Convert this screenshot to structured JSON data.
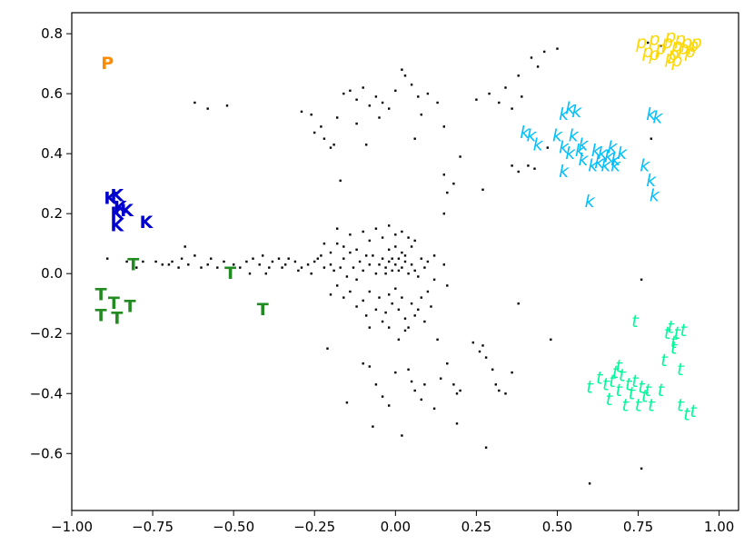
{
  "chart_data": {
    "type": "scatter",
    "title": "",
    "xlabel": "",
    "ylabel": "",
    "xlim": [
      -1.0,
      1.06
    ],
    "ylim": [
      -0.79,
      0.87
    ],
    "grid": false,
    "xticks": [
      -1.0,
      -0.75,
      -0.5,
      -0.25,
      0.0,
      0.25,
      0.5,
      0.75,
      1.0
    ],
    "xtick_labels": [
      "−1.00",
      "−0.75",
      "−0.50",
      "−0.25",
      "0.00",
      "0.25",
      "0.50",
      "0.75",
      "1.00"
    ],
    "yticks": [
      -0.6,
      -0.4,
      -0.2,
      0.0,
      0.2,
      0.4,
      0.6,
      0.8
    ],
    "ytick_labels": [
      "−0.6",
      "−0.4",
      "−0.2",
      "0.0",
      "0.2",
      "0.4",
      "0.6",
      "0.8"
    ],
    "label_series": [
      {
        "glyph": "P",
        "style": "bold",
        "color": "#ff8c00",
        "points": [
          [
            -0.89,
            0.7
          ]
        ]
      },
      {
        "glyph": "K",
        "style": "bold",
        "color": "#0000cd",
        "points": [
          [
            -0.88,
            0.25
          ],
          [
            -0.86,
            0.26
          ],
          [
            -0.85,
            0.22
          ],
          [
            -0.86,
            0.2
          ],
          [
            -0.83,
            0.21
          ],
          [
            -0.86,
            0.16
          ],
          [
            -0.77,
            0.17
          ]
        ]
      },
      {
        "glyph": "T",
        "style": "bold",
        "color": "#228b22",
        "points": [
          [
            -0.91,
            -0.07
          ],
          [
            -0.91,
            -0.14
          ],
          [
            -0.87,
            -0.1
          ],
          [
            -0.86,
            -0.15
          ],
          [
            -0.82,
            -0.11
          ],
          [
            -0.81,
            0.03
          ],
          [
            -0.51,
            0.0
          ],
          [
            -0.41,
            -0.12
          ]
        ]
      },
      {
        "glyph": "p",
        "style": "italic",
        "color": "#ffd700",
        "points": [
          [
            0.76,
            0.77
          ],
          [
            0.78,
            0.74
          ],
          [
            0.8,
            0.78
          ],
          [
            0.82,
            0.75
          ],
          [
            0.84,
            0.77
          ],
          [
            0.85,
            0.79
          ],
          [
            0.86,
            0.73
          ],
          [
            0.87,
            0.76
          ],
          [
            0.88,
            0.78
          ],
          [
            0.89,
            0.75
          ],
          [
            0.9,
            0.77
          ],
          [
            0.91,
            0.74
          ],
          [
            0.92,
            0.76
          ],
          [
            0.87,
            0.71
          ],
          [
            0.85,
            0.72
          ],
          [
            0.93,
            0.77
          ],
          [
            0.8,
            0.73
          ]
        ]
      },
      {
        "glyph": "k",
        "style": "italic",
        "color": "#00bfff",
        "points": [
          [
            0.4,
            0.47
          ],
          [
            0.42,
            0.46
          ],
          [
            0.44,
            0.43
          ],
          [
            0.5,
            0.46
          ],
          [
            0.52,
            0.53
          ],
          [
            0.54,
            0.55
          ],
          [
            0.56,
            0.54
          ],
          [
            0.52,
            0.42
          ],
          [
            0.54,
            0.4
          ],
          [
            0.57,
            0.41
          ],
          [
            0.55,
            0.46
          ],
          [
            0.58,
            0.38
          ],
          [
            0.6,
            0.24
          ],
          [
            0.62,
            0.41
          ],
          [
            0.64,
            0.4
          ],
          [
            0.66,
            0.39
          ],
          [
            0.63,
            0.37
          ],
          [
            0.65,
            0.36
          ],
          [
            0.68,
            0.38
          ],
          [
            0.7,
            0.4
          ],
          [
            0.67,
            0.42
          ],
          [
            0.52,
            0.34
          ],
          [
            0.58,
            0.43
          ],
          [
            0.77,
            0.36
          ],
          [
            0.79,
            0.31
          ],
          [
            0.8,
            0.26
          ],
          [
            0.79,
            0.53
          ],
          [
            0.81,
            0.52
          ],
          [
            0.61,
            0.36
          ],
          [
            0.68,
            0.36
          ]
        ]
      },
      {
        "glyph": "t",
        "style": "italic",
        "color": "#00fa9a",
        "points": [
          [
            0.6,
            -0.38
          ],
          [
            0.63,
            -0.35
          ],
          [
            0.65,
            -0.37
          ],
          [
            0.67,
            -0.36
          ],
          [
            0.68,
            -0.33
          ],
          [
            0.69,
            -0.39
          ],
          [
            0.7,
            -0.34
          ],
          [
            0.71,
            -0.44
          ],
          [
            0.73,
            -0.4
          ],
          [
            0.74,
            -0.36
          ],
          [
            0.75,
            -0.44
          ],
          [
            0.76,
            -0.38
          ],
          [
            0.77,
            -0.41
          ],
          [
            0.78,
            -0.39
          ],
          [
            0.79,
            -0.44
          ],
          [
            0.82,
            -0.39
          ],
          [
            0.83,
            -0.29
          ],
          [
            0.84,
            -0.2
          ],
          [
            0.85,
            -0.18
          ],
          [
            0.86,
            -0.25
          ],
          [
            0.87,
            -0.2
          ],
          [
            0.88,
            -0.32
          ],
          [
            0.88,
            -0.44
          ],
          [
            0.9,
            -0.47
          ],
          [
            0.92,
            -0.46
          ],
          [
            0.72,
            -0.37
          ],
          [
            0.66,
            -0.42
          ],
          [
            0.74,
            -0.16
          ],
          [
            0.86,
            -0.23
          ],
          [
            0.89,
            -0.19
          ],
          [
            0.69,
            -0.31
          ]
        ]
      }
    ],
    "dot_series": {
      "color": "#000000",
      "points": [
        [
          -0.89,
          0.05
        ],
        [
          -0.83,
          0.04
        ],
        [
          -0.8,
          0.02
        ],
        [
          -0.78,
          0.04
        ],
        [
          -0.74,
          0.04
        ],
        [
          -0.72,
          0.03
        ],
        [
          -0.7,
          0.03
        ],
        [
          -0.69,
          0.04
        ],
        [
          -0.67,
          0.02
        ],
        [
          -0.66,
          0.05
        ],
        [
          -0.64,
          0.03
        ],
        [
          -0.62,
          0.06
        ],
        [
          -0.6,
          0.02
        ],
        [
          -0.58,
          0.03
        ],
        [
          -0.57,
          0.05
        ],
        [
          -0.55,
          0.02
        ],
        [
          -0.53,
          0.04
        ],
        [
          -0.5,
          0.03
        ],
        [
          -0.48,
          0.02
        ],
        [
          -0.46,
          0.04
        ],
        [
          -0.44,
          0.05
        ],
        [
          -0.42,
          0.03
        ],
        [
          -0.41,
          0.06
        ],
        [
          -0.39,
          0.02
        ],
        [
          -0.38,
          0.04
        ],
        [
          -0.36,
          0.05
        ],
        [
          -0.34,
          0.03
        ],
        [
          -0.33,
          0.05
        ],
        [
          -0.31,
          0.04
        ],
        [
          -0.29,
          0.02
        ],
        [
          -0.27,
          0.03
        ],
        [
          -0.25,
          0.04
        ],
        [
          -0.23,
          0.06
        ],
        [
          -0.22,
          0.02
        ],
        [
          -0.2,
          0.03
        ],
        [
          -0.45,
          0.0
        ],
        [
          -0.4,
          0.0
        ],
        [
          -0.35,
          0.02
        ],
        [
          -0.3,
          0.01
        ],
        [
          -0.26,
          0.0
        ],
        [
          -0.65,
          0.09
        ],
        [
          -0.62,
          0.57
        ],
        [
          -0.58,
          0.55
        ],
        [
          -0.52,
          0.56
        ],
        [
          -0.29,
          0.54
        ],
        [
          -0.26,
          0.53
        ],
        [
          -0.23,
          0.49
        ],
        [
          -0.25,
          0.47
        ],
        [
          -0.22,
          0.45
        ],
        [
          -0.19,
          0.43
        ],
        [
          -0.18,
          0.52
        ],
        [
          -0.16,
          0.6
        ],
        [
          -0.14,
          0.61
        ],
        [
          -0.12,
          0.58
        ],
        [
          -0.1,
          0.62
        ],
        [
          -0.08,
          0.56
        ],
        [
          -0.06,
          0.59
        ],
        [
          -0.04,
          0.57
        ],
        [
          -0.02,
          0.55
        ],
        [
          0.0,
          0.61
        ],
        [
          0.03,
          0.66
        ],
        [
          0.05,
          0.63
        ],
        [
          0.07,
          0.59
        ],
        [
          0.08,
          0.53
        ],
        [
          0.1,
          0.6
        ],
        [
          0.13,
          0.57
        ],
        [
          0.15,
          0.49
        ],
        [
          -0.12,
          0.5
        ],
        [
          -0.05,
          0.52
        ],
        [
          0.02,
          0.68
        ],
        [
          0.06,
          0.45
        ],
        [
          -0.2,
          0.42
        ],
        [
          -0.17,
          0.31
        ],
        [
          -0.09,
          0.43
        ],
        [
          0.15,
          0.33
        ],
        [
          0.2,
          0.39
        ],
        [
          0.16,
          0.27
        ],
        [
          0.18,
          0.3
        ],
        [
          0.27,
          0.28
        ],
        [
          0.15,
          0.2
        ],
        [
          0.29,
          0.6
        ],
        [
          0.25,
          0.58
        ],
        [
          0.32,
          0.57
        ],
        [
          0.34,
          0.62
        ],
        [
          0.36,
          0.55
        ],
        [
          0.39,
          0.59
        ],
        [
          0.38,
          0.66
        ],
        [
          0.42,
          0.72
        ],
        [
          0.44,
          0.69
        ],
        [
          0.46,
          0.74
        ],
        [
          0.36,
          0.36
        ],
        [
          0.38,
          0.34
        ],
        [
          0.41,
          0.36
        ],
        [
          0.43,
          0.35
        ],
        [
          0.47,
          0.42
        ],
        [
          0.5,
          0.75
        ],
        [
          0.78,
          0.77
        ],
        [
          0.82,
          0.76
        ],
        [
          0.79,
          0.45
        ],
        [
          -0.18,
          0.15
        ],
        [
          -0.14,
          0.13
        ],
        [
          -0.12,
          0.08
        ],
        [
          -0.1,
          0.14
        ],
        [
          -0.08,
          0.11
        ],
        [
          -0.06,
          0.15
        ],
        [
          -0.04,
          0.12
        ],
        [
          -0.02,
          0.16
        ],
        [
          0.0,
          0.13
        ],
        [
          0.02,
          0.14
        ],
        [
          0.04,
          0.12
        ],
        [
          0.06,
          0.11
        ],
        [
          -0.16,
          0.05
        ],
        [
          -0.14,
          0.07
        ],
        [
          -0.12,
          -0.02
        ],
        [
          -0.1,
          0.01
        ],
        [
          -0.08,
          0.03
        ],
        [
          -0.07,
          0.06
        ],
        [
          -0.06,
          0.0
        ],
        [
          -0.05,
          0.03
        ],
        [
          -0.04,
          0.05
        ],
        [
          -0.03,
          0.02
        ],
        [
          -0.02,
          0.04
        ],
        [
          -0.01,
          0.01
        ],
        [
          0.0,
          0.03
        ],
        [
          0.01,
          0.05
        ],
        [
          0.02,
          0.02
        ],
        [
          0.03,
          0.04
        ],
        [
          0.04,
          0.0
        ],
        [
          0.05,
          0.03
        ],
        [
          0.06,
          0.01
        ],
        [
          0.07,
          -0.01
        ],
        [
          0.08,
          0.05
        ],
        [
          0.09,
          0.02
        ],
        [
          0.1,
          0.04
        ],
        [
          0.12,
          0.06
        ],
        [
          -0.03,
          0.0
        ],
        [
          -0.01,
          0.05
        ],
        [
          0.01,
          0.01
        ],
        [
          0.03,
          0.06
        ],
        [
          -0.02,
          0.08
        ],
        [
          0.0,
          0.09
        ],
        [
          0.02,
          0.07
        ],
        [
          0.05,
          0.09
        ],
        [
          -0.09,
          0.06
        ],
        [
          -0.11,
          0.04
        ],
        [
          -0.13,
          0.02
        ],
        [
          -0.15,
          -0.01
        ],
        [
          -0.17,
          0.02
        ],
        [
          -0.19,
          0.01
        ],
        [
          -0.18,
          -0.04
        ],
        [
          -0.16,
          -0.08
        ],
        [
          -0.14,
          -0.06
        ],
        [
          -0.12,
          -0.11
        ],
        [
          -0.1,
          -0.09
        ],
        [
          -0.09,
          -0.14
        ],
        [
          -0.08,
          -0.06
        ],
        [
          -0.06,
          -0.12
        ],
        [
          -0.05,
          -0.08
        ],
        [
          -0.04,
          -0.16
        ],
        [
          -0.03,
          -0.13
        ],
        [
          -0.02,
          -0.07
        ],
        [
          -0.01,
          -0.1
        ],
        [
          0.0,
          -0.05
        ],
        [
          0.01,
          -0.12
        ],
        [
          0.02,
          -0.08
        ],
        [
          0.03,
          -0.15
        ],
        [
          0.04,
          -0.18
        ],
        [
          0.05,
          -0.1
        ],
        [
          0.06,
          -0.14
        ],
        [
          0.07,
          -0.12
        ],
        [
          0.08,
          -0.08
        ],
        [
          0.09,
          -0.16
        ],
        [
          0.1,
          -0.06
        ],
        [
          0.11,
          -0.11
        ],
        [
          -0.2,
          -0.07
        ],
        [
          -0.08,
          -0.18
        ],
        [
          -0.02,
          -0.18
        ],
        [
          0.03,
          -0.19
        ],
        [
          0.01,
          -0.22
        ],
        [
          0.12,
          -0.02
        ],
        [
          0.15,
          0.03
        ],
        [
          0.16,
          -0.04
        ],
        [
          -0.24,
          0.05
        ],
        [
          -0.22,
          0.1
        ],
        [
          -0.2,
          0.07
        ],
        [
          -0.18,
          0.1
        ],
        [
          -0.16,
          0.09
        ],
        [
          -0.1,
          -0.3
        ],
        [
          -0.08,
          -0.31
        ],
        [
          -0.06,
          -0.37
        ],
        [
          -0.04,
          -0.41
        ],
        [
          -0.02,
          -0.44
        ],
        [
          0.0,
          -0.33
        ],
        [
          0.04,
          -0.32
        ],
        [
          0.05,
          -0.36
        ],
        [
          0.06,
          -0.39
        ],
        [
          0.08,
          -0.42
        ],
        [
          0.12,
          -0.45
        ],
        [
          0.14,
          -0.35
        ],
        [
          0.16,
          -0.3
        ],
        [
          0.18,
          -0.37
        ],
        [
          0.19,
          -0.4
        ],
        [
          0.2,
          -0.39
        ],
        [
          0.24,
          -0.23
        ],
        [
          0.26,
          -0.26
        ],
        [
          0.27,
          -0.24
        ],
        [
          0.28,
          -0.28
        ],
        [
          0.3,
          -0.32
        ],
        [
          0.31,
          -0.37
        ],
        [
          0.32,
          -0.39
        ],
        [
          0.34,
          -0.4
        ],
        [
          0.36,
          -0.33
        ],
        [
          0.38,
          -0.1
        ],
        [
          0.48,
          -0.22
        ],
        [
          0.76,
          -0.02
        ],
        [
          0.76,
          -0.65
        ],
        [
          0.6,
          -0.7
        ],
        [
          0.28,
          -0.58
        ],
        [
          0.19,
          -0.5
        ],
        [
          0.02,
          -0.54
        ],
        [
          -0.07,
          -0.51
        ],
        [
          -0.15,
          -0.43
        ],
        [
          -0.21,
          -0.25
        ],
        [
          0.09,
          -0.37
        ],
        [
          0.13,
          -0.22
        ]
      ]
    }
  }
}
